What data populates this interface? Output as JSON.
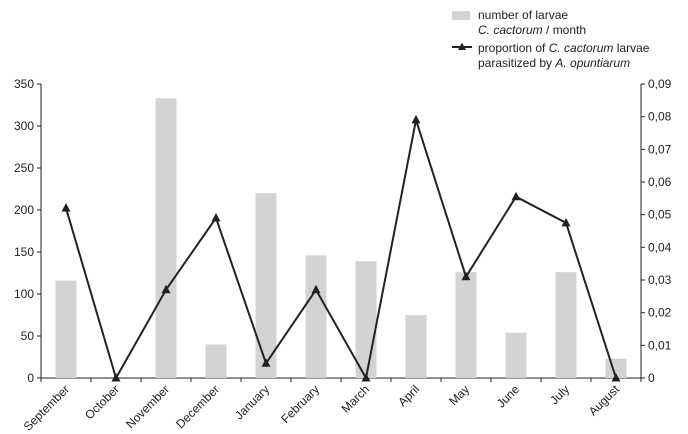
{
  "chart_data": {
    "type": "bar+line",
    "categories": [
      "September",
      "October",
      "November",
      "December",
      "January",
      "February",
      "March",
      "April",
      "May",
      "June",
      "July",
      "August"
    ],
    "series": [
      {
        "name": "number of larvae C. cactorum / month",
        "type": "bar",
        "axis": "left",
        "color": "#d3d3d3",
        "values": [
          116,
          0,
          333,
          40,
          220,
          146,
          139,
          75,
          126,
          54,
          126,
          23
        ]
      },
      {
        "name": "proportion of C. cactorum larvae parasitized by A. opuntiarum",
        "type": "line",
        "axis": "right",
        "color": "#222222",
        "marker": "triangle",
        "values": [
          0.052,
          0.0,
          0.027,
          0.049,
          0.0045,
          0.027,
          0.0,
          0.079,
          0.031,
          0.0555,
          0.0475,
          0.0
        ]
      }
    ],
    "y_left": {
      "min": 0,
      "max": 350,
      "ticks": [
        "0",
        "50",
        "100",
        "150",
        "200",
        "250",
        "300",
        "350"
      ]
    },
    "y_right": {
      "min": 0,
      "max": 0.09,
      "ticks": [
        "0",
        "0,01",
        "0,02",
        "0,03",
        "0,04",
        "0,05",
        "0,06",
        "0,07",
        "0,08",
        "0,09"
      ]
    },
    "legend": {
      "placement": "top-right",
      "bar_line1": "number of larvae",
      "bar_line2_italic": "C. cactorum",
      "bar_line2_rest": " / month",
      "line_line1_pre": "proportion of ",
      "line_line1_italic": "C. cactorum",
      "line_line1_post": " larvae",
      "line_line2_pre": "parasitized by ",
      "line_line2_italic": "A. opuntiarum"
    },
    "grid": false
  }
}
